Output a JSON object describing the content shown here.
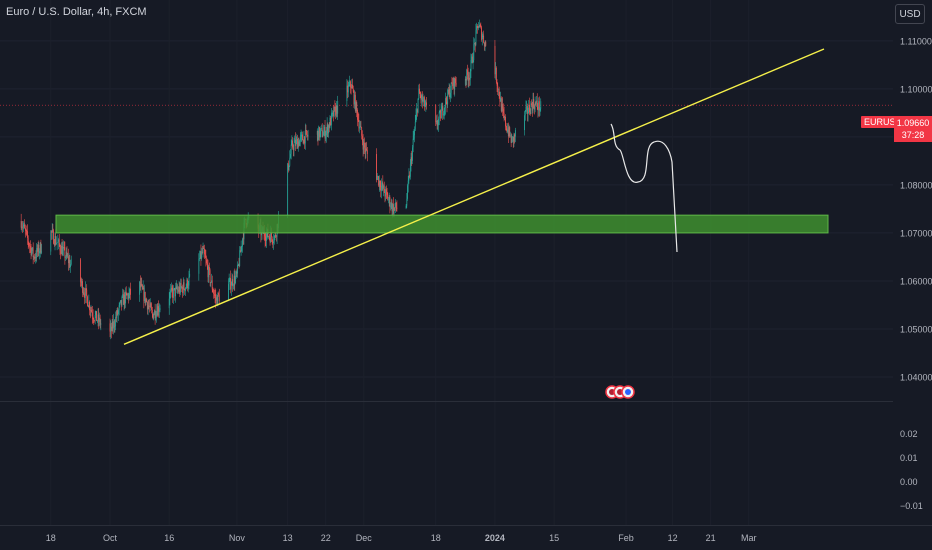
{
  "header": {
    "title": "Euro / U.S. Dollar, 4h, FXCM",
    "currency": "USD"
  },
  "symbol_tag": {
    "label": "EURUSD",
    "price": "1.09660",
    "countdown": "37:28"
  },
  "colors": {
    "background": "#161a25",
    "up": "#26a69a",
    "down": "#ef5350",
    "trendline": "#f5f04a",
    "zone_fill": "#3e8f2f",
    "projection": "#e8e8e8",
    "price_line": "#f23645"
  },
  "chart_data": [
    {
      "type": "candlestick",
      "title": "Euro / U.S. Dollar, 4h, FXCM",
      "ylim": [
        1.035,
        1.1185
      ],
      "y_ticks": [
        "1.11000",
        "1.10000",
        "1.09000",
        "1.08000",
        "1.07000",
        "1.06000",
        "1.05000",
        "1.04000"
      ],
      "y_tick_values": [
        1.11,
        1.1,
        1.09,
        1.08,
        1.07,
        1.06,
        1.05,
        1.04
      ],
      "x_ticks": [
        "18",
        "Oct",
        "16",
        "Nov",
        "13",
        "22",
        "Dec",
        "18",
        "2024",
        "15",
        "Feb",
        "12",
        "21",
        "Mar"
      ],
      "x_tick_dates": [
        "2023-09-18",
        "2023-10-02",
        "2023-10-16",
        "2023-11-01",
        "2023-11-13",
        "2023-11-22",
        "2023-12-01",
        "2023-12-18",
        "2024-01-01",
        "2024-01-15",
        "2024-02-01",
        "2024-02-12",
        "2024-02-21",
        "2024-03-01"
      ],
      "last_price": 1.0966,
      "price_path": [
        [
          "2023-09-11",
          1.0725
        ],
        [
          "2023-09-14",
          1.065
        ],
        [
          "2023-09-18",
          1.07
        ],
        [
          "2023-09-21",
          1.066
        ],
        [
          "2023-09-25",
          1.06
        ],
        [
          "2023-09-28",
          1.053
        ],
        [
          "2023-10-02",
          1.049
        ],
        [
          "2023-10-05",
          1.056
        ],
        [
          "2023-10-09",
          1.059
        ],
        [
          "2023-10-12",
          1.053
        ],
        [
          "2023-10-16",
          1.057
        ],
        [
          "2023-10-20",
          1.059
        ],
        [
          "2023-10-24",
          1.066
        ],
        [
          "2023-10-27",
          1.056
        ],
        [
          "2023-11-01",
          1.061
        ],
        [
          "2023-11-03",
          1.073
        ],
        [
          "2023-11-07",
          1.07
        ],
        [
          "2023-11-10",
          1.069
        ],
        [
          "2023-11-14",
          1.088
        ],
        [
          "2023-11-17",
          1.09
        ],
        [
          "2023-11-22",
          1.091
        ],
        [
          "2023-11-24",
          1.095
        ],
        [
          "2023-11-28",
          1.101
        ],
        [
          "2023-12-01",
          1.088
        ],
        [
          "2023-12-05",
          1.08
        ],
        [
          "2023-12-08",
          1.075
        ],
        [
          "2023-12-11",
          1.076
        ],
        [
          "2023-12-14",
          1.099
        ],
        [
          "2023-12-18",
          1.092
        ],
        [
          "2023-12-22",
          1.101
        ],
        [
          "2023-12-26",
          1.103
        ],
        [
          "2023-12-28",
          1.1135
        ],
        [
          "2024-01-01",
          1.104
        ],
        [
          "2024-01-03",
          1.094
        ],
        [
          "2024-01-05",
          1.089
        ],
        [
          "2024-01-08",
          1.0945
        ],
        [
          "2024-01-10",
          1.097
        ],
        [
          "2024-01-12",
          1.096
        ]
      ]
    },
    {
      "type": "line",
      "title": "",
      "ylim": [
        -0.018,
        0.033
      ],
      "y_ticks": [
        "0.02",
        "0.01",
        "0.00",
        "−0.01"
      ],
      "y_tick_values": [
        0.02,
        0.01,
        0.0,
        -0.01
      ]
    }
  ]
}
